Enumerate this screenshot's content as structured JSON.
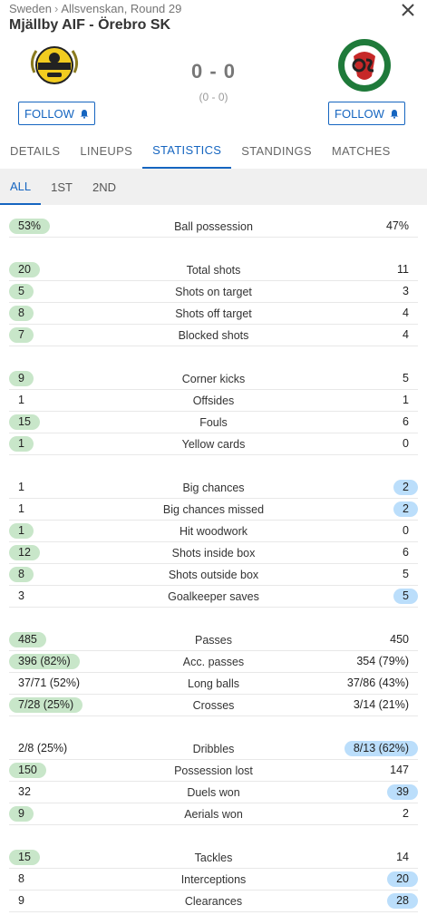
{
  "header": {
    "country": "Sweden",
    "competition": "Allsvenskan, Round 29",
    "title": "Mjällby AIF - Örebro SK",
    "score": "0 - 0",
    "halftime": "(0 - 0)",
    "follow_home": "FOLLOW",
    "follow_away": "FOLLOW"
  },
  "tabs": [
    "DETAILS",
    "LINEUPS",
    "STATISTICS",
    "STANDINGS",
    "MATCHES"
  ],
  "subtabs": [
    "ALL",
    "1ST",
    "2ND"
  ],
  "colors": {
    "accent": "#1565c0",
    "home_highlight": "#c8e6c9",
    "away_highlight": "#bbdefb"
  },
  "stats": [
    [
      {
        "label": "Ball possession",
        "home": "53%",
        "away": "47%",
        "hl": "home"
      }
    ],
    [
      {
        "label": "Total shots",
        "home": "20",
        "away": "11",
        "hl": "home"
      },
      {
        "label": "Shots on target",
        "home": "5",
        "away": "3",
        "hl": "home"
      },
      {
        "label": "Shots off target",
        "home": "8",
        "away": "4",
        "hl": "home"
      },
      {
        "label": "Blocked shots",
        "home": "7",
        "away": "4",
        "hl": "home"
      }
    ],
    [
      {
        "label": "Corner kicks",
        "home": "9",
        "away": "5",
        "hl": "home"
      },
      {
        "label": "Offsides",
        "home": "1",
        "away": "1",
        "hl": ""
      },
      {
        "label": "Fouls",
        "home": "15",
        "away": "6",
        "hl": "home"
      },
      {
        "label": "Yellow cards",
        "home": "1",
        "away": "0",
        "hl": "home"
      }
    ],
    [
      {
        "label": "Big chances",
        "home": "1",
        "away": "2",
        "hl": "away"
      },
      {
        "label": "Big chances missed",
        "home": "1",
        "away": "2",
        "hl": "away"
      },
      {
        "label": "Hit woodwork",
        "home": "1",
        "away": "0",
        "hl": "home"
      },
      {
        "label": "Shots inside box",
        "home": "12",
        "away": "6",
        "hl": "home"
      },
      {
        "label": "Shots outside box",
        "home": "8",
        "away": "5",
        "hl": "home"
      },
      {
        "label": "Goalkeeper saves",
        "home": "3",
        "away": "5",
        "hl": "away"
      }
    ],
    [
      {
        "label": "Passes",
        "home": "485",
        "away": "450",
        "hl": "home"
      },
      {
        "label": "Acc. passes",
        "home": "396 (82%)",
        "away": "354 (79%)",
        "hl": "home"
      },
      {
        "label": "Long balls",
        "home": "37/71 (52%)",
        "away": "37/86 (43%)",
        "hl": ""
      },
      {
        "label": "Crosses",
        "home": "7/28 (25%)",
        "away": "3/14 (21%)",
        "hl": "home"
      }
    ],
    [
      {
        "label": "Dribbles",
        "home": "2/8 (25%)",
        "away": "8/13 (62%)",
        "hl": "away"
      },
      {
        "label": "Possession lost",
        "home": "150",
        "away": "147",
        "hl": "home"
      },
      {
        "label": "Duels won",
        "home": "32",
        "away": "39",
        "hl": "away"
      },
      {
        "label": "Aerials won",
        "home": "9",
        "away": "2",
        "hl": "home"
      }
    ],
    [
      {
        "label": "Tackles",
        "home": "15",
        "away": "14",
        "hl": "home"
      },
      {
        "label": "Interceptions",
        "home": "8",
        "away": "20",
        "hl": "away"
      },
      {
        "label": "Clearances",
        "home": "9",
        "away": "28",
        "hl": "away"
      }
    ]
  ]
}
